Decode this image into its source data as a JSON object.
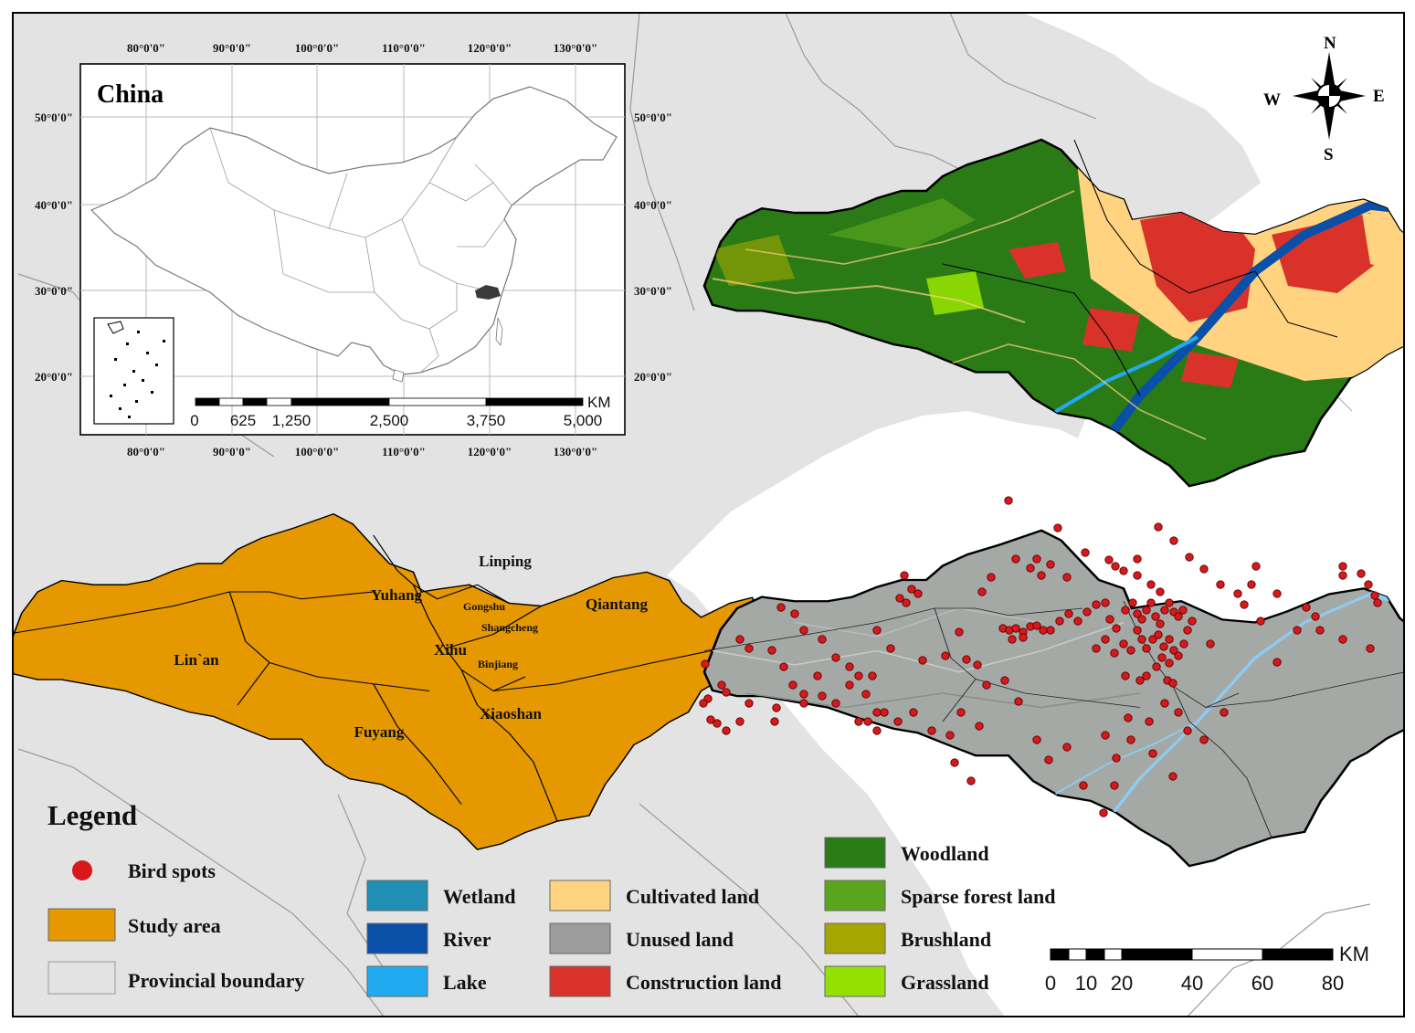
{
  "colors": {
    "background_land": "#e3e3e3",
    "sea": "#ffffff",
    "study_area": "#e69800",
    "wetland": "#1f8fb4",
    "river": "#0a4fa8",
    "lake": "#22aaf0",
    "cultivated": "#ffd37f",
    "unused": "#9c9c9c",
    "construction": "#d9322a",
    "woodland": "#2a7a16",
    "sparse_forest": "#5aa41e",
    "brushland": "#a5a700",
    "grassland": "#94e000",
    "bird": "#d7191c"
  },
  "inset": {
    "title": "China",
    "lon_ticks": [
      "80°0'0\"",
      "90°0'0\"",
      "100°0'0\"",
      "110°0'0\"",
      "120°0'0\"",
      "130°0'0\""
    ],
    "lat_ticks": [
      "50°0'0\"",
      "40°0'0\"",
      "30°0'0\"",
      "20°0'0\""
    ],
    "scalebar": {
      "unit": "KM",
      "labels": [
        "0",
        "625",
        "1,250",
        "2,500",
        "3,750",
        "5,000"
      ]
    }
  },
  "districts": [
    {
      "name": "Linping",
      "size": "large"
    },
    {
      "name": "Yuhang",
      "size": "large"
    },
    {
      "name": "Gongshu",
      "size": "small"
    },
    {
      "name": "Shangcheng",
      "size": "small"
    },
    {
      "name": "Qiantang",
      "size": "large"
    },
    {
      "name": "Lin`an",
      "size": "large"
    },
    {
      "name": "Xihu",
      "size": "large"
    },
    {
      "name": "Binjiang",
      "size": "small"
    },
    {
      "name": "Fuyang",
      "size": "large"
    },
    {
      "name": "Xiaoshan",
      "size": "large"
    }
  ],
  "compass": {
    "n": "N",
    "s": "S",
    "e": "E",
    "w": "W"
  },
  "legend": {
    "title": "Legend",
    "items": [
      {
        "key": "bird",
        "label": "Bird spots"
      },
      {
        "key": "study",
        "label": "Study area"
      },
      {
        "key": "boundary",
        "label": "Provincial boundary"
      },
      {
        "key": "wetland",
        "label": "Wetland"
      },
      {
        "key": "river",
        "label": "River"
      },
      {
        "key": "lake",
        "label": "Lake"
      },
      {
        "key": "cultivated",
        "label": "Cultivated land"
      },
      {
        "key": "unused",
        "label": "Unused land"
      },
      {
        "key": "construction",
        "label": "Construction land"
      },
      {
        "key": "woodland",
        "label": "Woodland"
      },
      {
        "key": "sparse",
        "label": "Sparse forest land"
      },
      {
        "key": "brushland",
        "label": "Brushland"
      },
      {
        "key": "grassland",
        "label": "Grassland"
      }
    ]
  },
  "scalebar": {
    "unit": "KM",
    "labels": [
      "0",
      "10",
      "20",
      "40",
      "60",
      "80"
    ]
  }
}
